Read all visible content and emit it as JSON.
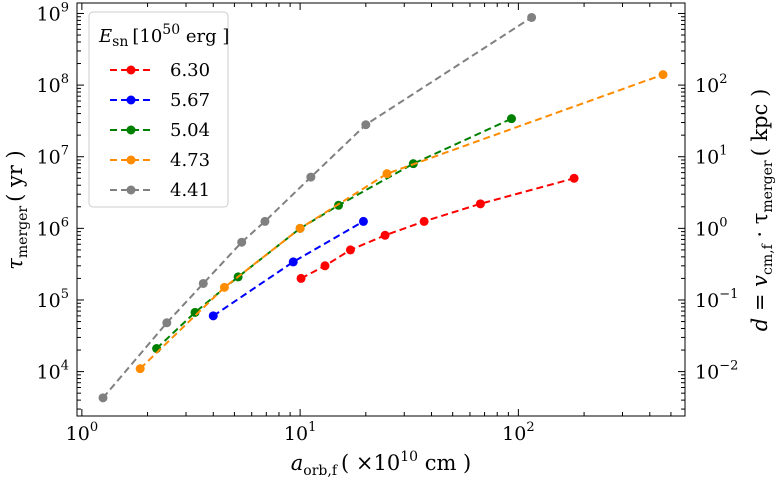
{
  "chart_data": {
    "type": "line",
    "x_scale": "log",
    "y_scale": "log",
    "xlim": [
      0.95,
      580
    ],
    "ylim": [
      2400,
      1400000000
    ],
    "xlabel": {
      "symbol": "a",
      "sub": "orb,f",
      "unit": "( ×10",
      "unit_exp": "10",
      "unit_tail": " cm )"
    },
    "ylabel": {
      "symbol": "τ",
      "sub": "merger",
      "unit": "( yr )"
    },
    "y2label": {
      "lhs": "d = v",
      "sub1": "cm,f",
      "mid": " · τ",
      "sub2": "merger",
      "unit": "( kpc )"
    },
    "x_ticks": [
      {
        "value": 1,
        "base": "10",
        "exp": "0"
      },
      {
        "value": 10,
        "base": "10",
        "exp": "1"
      },
      {
        "value": 100,
        "base": "10",
        "exp": "2"
      }
    ],
    "y_ticks": [
      {
        "value": 10000,
        "base": "10",
        "exp": "4"
      },
      {
        "value": 100000,
        "base": "10",
        "exp": "5"
      },
      {
        "value": 1000000,
        "base": "10",
        "exp": "6"
      },
      {
        "value": 10000000,
        "base": "10",
        "exp": "7"
      },
      {
        "value": 100000000,
        "base": "10",
        "exp": "8"
      },
      {
        "value": 1000000000,
        "base": "10",
        "exp": "9"
      }
    ],
    "y2_ticks": [
      {
        "value": 0.01,
        "base": "10",
        "exp": "−2"
      },
      {
        "value": 0.1,
        "base": "10",
        "exp": "−1"
      },
      {
        "value": 1,
        "base": "10",
        "exp": "0"
      },
      {
        "value": 10,
        "base": "10",
        "exp": "1"
      },
      {
        "value": 100,
        "base": "10",
        "exp": "2"
      }
    ],
    "y2_per_y_decade": {
      "y": 1000000,
      "y2": 1.0
    },
    "legend": {
      "title_symbol": "E",
      "title_sub": "sn",
      "title_unit": "[10",
      "title_exp": "50",
      "title_tail": " erg ]",
      "placement": "top-left"
    },
    "series": [
      {
        "name": "6.30",
        "color": "#ff0000",
        "x": [
          10.1,
          13.0,
          17.0,
          24.5,
          37.0,
          67.0,
          180.0
        ],
        "y": [
          200000,
          300000,
          500000,
          800000,
          1250000,
          2200000,
          5000000
        ]
      },
      {
        "name": "5.67",
        "color": "#0000ff",
        "x": [
          4.0,
          9.3,
          19.5
        ],
        "y": [
          60000,
          340000,
          1250000
        ]
      },
      {
        "name": "5.04",
        "color": "#008000",
        "x": [
          2.2,
          3.3,
          5.2,
          10.0,
          15.0,
          33.0,
          93.0
        ],
        "y": [
          21000,
          67000,
          210000,
          1000000,
          2100000,
          8000000,
          34000000
        ]
      },
      {
        "name": "4.73",
        "color": "#ff8c00",
        "x": [
          1.85,
          4.5,
          10.0,
          25.0,
          460.0
        ],
        "y": [
          11000,
          150000,
          1000000,
          5800000,
          140000000
        ]
      },
      {
        "name": "4.41",
        "color": "#808080",
        "x": [
          1.25,
          2.45,
          3.6,
          5.4,
          6.9,
          11.2,
          20.0,
          115.0
        ],
        "y": [
          4300,
          48000,
          170000,
          640000,
          1250000,
          5200000,
          28000000,
          880000000
        ]
      }
    ]
  }
}
